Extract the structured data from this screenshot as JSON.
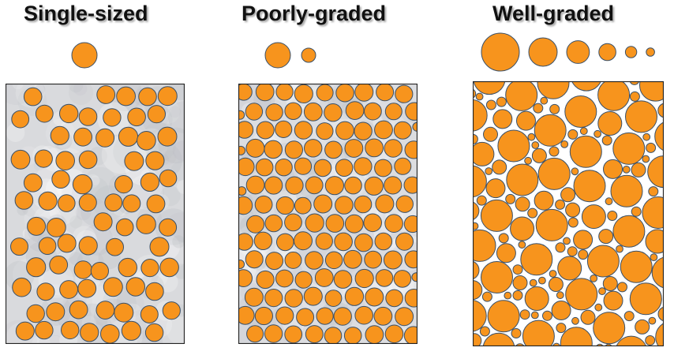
{
  "panels": [
    {
      "title": "Single-sized",
      "sizes": [
        1
      ]
    },
    {
      "title": "Poorly-graded",
      "sizes": [
        1,
        0.55
      ]
    },
    {
      "title": "Well-graded",
      "sizes": [
        1,
        0.75,
        0.6,
        0.45,
        0.3,
        0.22
      ]
    }
  ],
  "colors": {
    "particle_fill": "#F7941D",
    "particle_stroke": "#3A5068",
    "background_single": "#d9dadd",
    "background_poor": "#dcdde0",
    "background_well": "#ffffff",
    "panel_border": "#222222"
  }
}
